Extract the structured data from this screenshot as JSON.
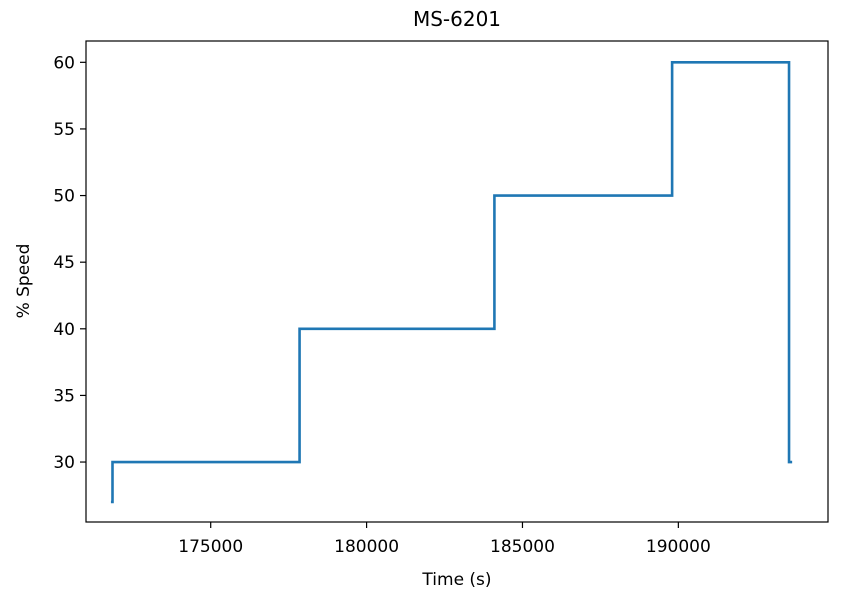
{
  "chart_data": {
    "type": "line",
    "title": "MS-6201",
    "xlabel": "Time (s)",
    "ylabel": "% Speed",
    "xlim": [
      171000,
      194800
    ],
    "ylim": [
      25.5,
      61.6
    ],
    "xticks": [
      175000,
      180000,
      185000,
      190000
    ],
    "yticks": [
      30,
      35,
      40,
      45,
      50,
      55,
      60
    ],
    "xtick_labels": [
      "175000",
      "180000",
      "185000",
      "190000"
    ],
    "ytick_labels": [
      "30",
      "35",
      "40",
      "45",
      "50",
      "55",
      "60"
    ],
    "grid": false,
    "legend": "none",
    "series": [
      {
        "color": "#1f77b4",
        "x": [
          171800,
          171800,
          171850,
          171850,
          177850,
          177850,
          184100,
          184100,
          189800,
          189800,
          193550,
          193550,
          193650
        ],
        "y": [
          27,
          27,
          27,
          30,
          30,
          40,
          40,
          50,
          50,
          60,
          60,
          30,
          30
        ]
      }
    ]
  }
}
